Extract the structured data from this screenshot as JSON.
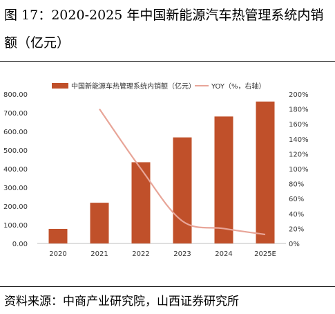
{
  "figure": {
    "title": "图 17：2020-2025 年中国新能源汽车热管理系统内销额（亿元）",
    "source": "资料来源：中商产业研究院，山西证券研究所"
  },
  "chart_data": {
    "type": "bar",
    "categories": [
      "2020",
      "2021",
      "2022",
      "2023",
      "2024",
      "2025E"
    ],
    "series": [
      {
        "name": "中国新能源车热管理系统内销额（亿元）",
        "type": "bar",
        "axis": "left",
        "color": "#c0502a",
        "values": [
          78,
          218,
          435,
          568,
          680,
          760
        ]
      },
      {
        "name": "YOY（%，右轴）",
        "type": "line",
        "axis": "right",
        "color": "#e8a598",
        "values": [
          null,
          180,
          100,
          30,
          20,
          12
        ]
      }
    ],
    "ylim_left": [
      0,
      800
    ],
    "ylim_right": [
      0,
      200
    ],
    "yticks_left": [
      "0.00",
      "100.00",
      "200.00",
      "300.00",
      "400.00",
      "500.00",
      "600.00",
      "700.00",
      "800.00"
    ],
    "yticks_right": [
      "0%",
      "20%",
      "40%",
      "60%",
      "80%",
      "100%",
      "120%",
      "140%",
      "160%",
      "180%",
      "200%"
    ],
    "legend_position": "top",
    "grid": false
  }
}
